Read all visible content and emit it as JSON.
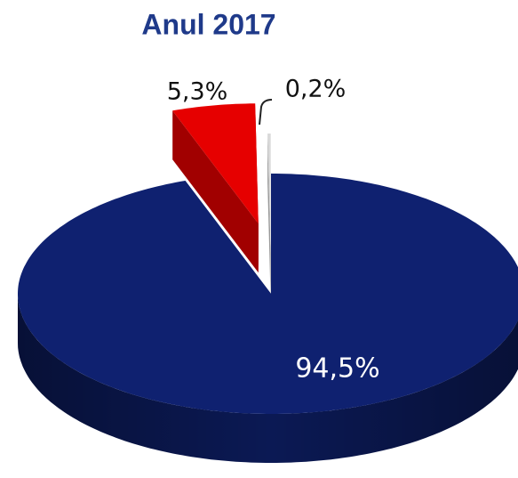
{
  "chart_data": {
    "type": "pie",
    "title": "Anul 2017",
    "values": [
      94.5,
      5.3,
      0.2
    ],
    "value_labels": [
      "94,5%",
      "5,3%",
      "0,2%"
    ],
    "colors": [
      "#0f2170",
      "#e60000",
      "#d9d9d9"
    ]
  }
}
